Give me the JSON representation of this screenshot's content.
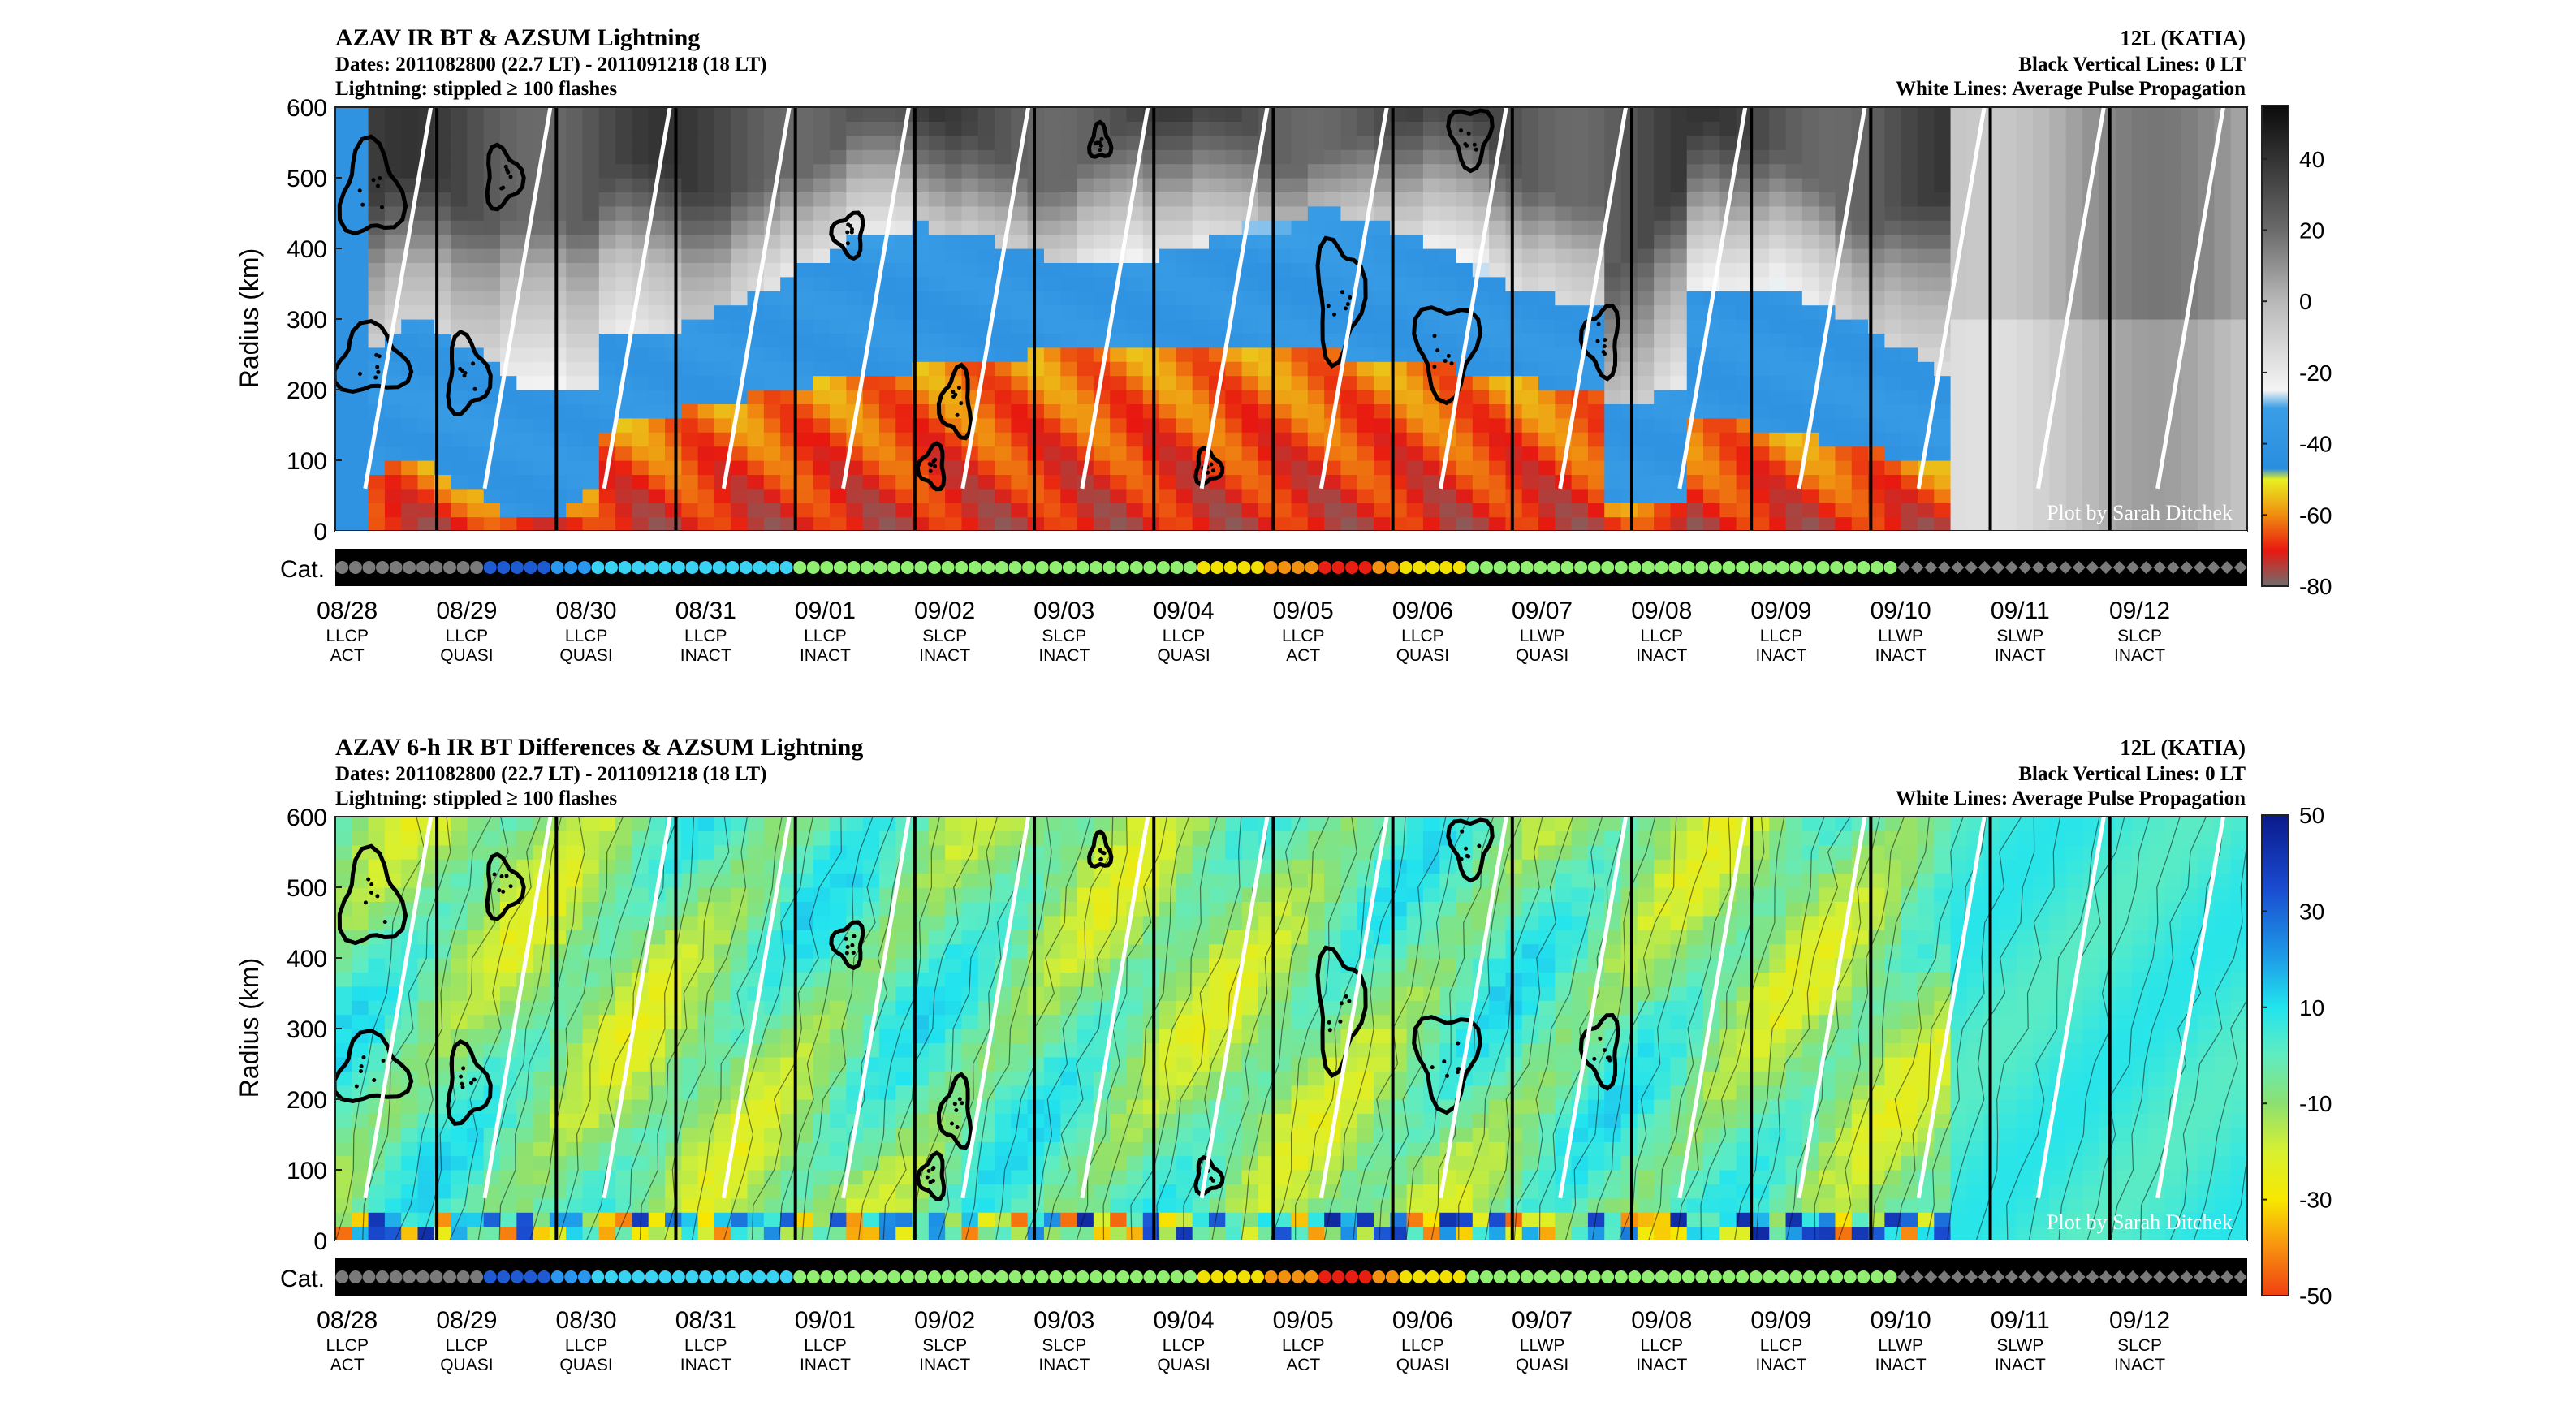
{
  "chart_data": [
    {
      "type": "heatmap",
      "id": "top",
      "title": "AZAV IR BT & AZSUM Lightning",
      "subtitle_lines": [
        "Dates: 2011082800 (22.7 LT) - 2011091218 (18 LT)",
        "Lightning: stippled ≥ 100 flashes"
      ],
      "right_lines": [
        "12L (KATIA)",
        "Black Vertical Lines: 0 LT",
        "White Lines: Average Pulse Propagation"
      ],
      "ylabel": "Radius (km)",
      "catlabel": "Cat.",
      "ylim": [
        0,
        600
      ],
      "yticks": [
        "0",
        "100",
        "200",
        "300",
        "400",
        "500",
        "600"
      ],
      "colorbar": {
        "range": [
          -80,
          55
        ],
        "ticks": [
          "40",
          "20",
          "0",
          "-20",
          "-40",
          "-60",
          "-80"
        ],
        "tick_values": [
          40,
          20,
          0,
          -20,
          -40,
          -60,
          -80
        ],
        "stops": [
          {
            "v": 55,
            "color": "#0a0a0a"
          },
          {
            "v": 20,
            "color": "#6a6a6a"
          },
          {
            "v": 0,
            "color": "#b8b8b8"
          },
          {
            "v": -25,
            "color": "#f4f4f4"
          },
          {
            "v": -30,
            "color": "#3a9ee6"
          },
          {
            "v": -47,
            "color": "#2a8ee0"
          },
          {
            "v": -50,
            "color": "#e8f020"
          },
          {
            "v": -60,
            "color": "#f08c10"
          },
          {
            "v": -70,
            "color": "#e81810"
          },
          {
            "v": -80,
            "color": "#6e6e6e"
          }
        ]
      },
      "watermark": "Plot by Sarah Ditchek"
    },
    {
      "type": "heatmap",
      "id": "bottom",
      "title": "AZAV 6-h IR BT Differences & AZSUM Lightning",
      "subtitle_lines": [
        "Dates: 2011082800 (22.7 LT) - 2011091218 (18 LT)",
        "Lightning: stippled ≥ 100 flashes"
      ],
      "right_lines": [
        "12L (KATIA)",
        "Black Vertical Lines: 0 LT",
        "White Lines: Average Pulse Propagation"
      ],
      "ylabel": "Radius (km)",
      "catlabel": "Cat.",
      "ylim": [
        0,
        600
      ],
      "yticks": [
        "0",
        "100",
        "200",
        "300",
        "400",
        "500",
        "600"
      ],
      "colorbar": {
        "range": [
          -50,
          50
        ],
        "ticks": [
          "50",
          "30",
          "10",
          "-10",
          "-30",
          "-50"
        ],
        "tick_values": [
          50,
          30,
          10,
          -10,
          -30,
          -50
        ],
        "stops": [
          {
            "v": 50,
            "color": "#0a1a8a"
          },
          {
            "v": 35,
            "color": "#1a4ad0"
          },
          {
            "v": 20,
            "color": "#1e9ee8"
          },
          {
            "v": 10,
            "color": "#22e4ee"
          },
          {
            "v": 0,
            "color": "#60ecc0"
          },
          {
            "v": -10,
            "color": "#8ce070"
          },
          {
            "v": -20,
            "color": "#d8f030"
          },
          {
            "v": -30,
            "color": "#f8e800"
          },
          {
            "v": -40,
            "color": "#f89010"
          },
          {
            "v": -50,
            "color": "#f04010"
          }
        ]
      },
      "watermark": "Plot by Sarah Ditchek"
    }
  ],
  "x_axis": {
    "dates": [
      "08/28",
      "08/29",
      "08/30",
      "08/31",
      "09/01",
      "09/02",
      "09/03",
      "09/04",
      "09/05",
      "09/06",
      "09/07",
      "09/08",
      "09/09",
      "09/10",
      "09/11",
      "09/12"
    ],
    "regime": [
      "LLCP",
      "LLCP",
      "LLCP",
      "LLCP",
      "LLCP",
      "SLCP",
      "SLCP",
      "LLCP",
      "LLCP",
      "LLCP",
      "LLWP",
      "LLCP",
      "LLCP",
      "LLWP",
      "SLWP",
      "SLCP"
    ],
    "stage": [
      "ACT",
      "QUASI",
      "QUASI",
      "INACT",
      "INACT",
      "INACT",
      "INACT",
      "QUASI",
      "ACT",
      "QUASI",
      "QUASI",
      "INACT",
      "INACT",
      "INACT",
      "INACT",
      "INACT"
    ]
  },
  "category_strip": {
    "colors": {
      "TD": "#7a7a7a",
      "C2": "#1e5ad2",
      "C3": "#2a96ee",
      "TS": "#3ad2f2",
      "H1": "#90ee70",
      "H2": "#f2e000",
      "H3": "#f29010",
      "H4": "#e81e10",
      "EX": "#7a7a7a"
    },
    "segments": [
      {
        "cat": "TD",
        "count": 11,
        "shape": "dot"
      },
      {
        "cat": "C2",
        "count": 5,
        "shape": "dot"
      },
      {
        "cat": "C3",
        "count": 3,
        "shape": "dot"
      },
      {
        "cat": "TS",
        "count": 15,
        "shape": "dot"
      },
      {
        "cat": "H1",
        "count": 30,
        "shape": "dot"
      },
      {
        "cat": "H2",
        "count": 5,
        "shape": "dot"
      },
      {
        "cat": "H3",
        "count": 4,
        "shape": "dot"
      },
      {
        "cat": "H4",
        "count": 4,
        "shape": "dot"
      },
      {
        "cat": "H3",
        "count": 2,
        "shape": "dot"
      },
      {
        "cat": "H2",
        "count": 5,
        "shape": "dot"
      },
      {
        "cat": "H1",
        "count": 32,
        "shape": "dot"
      },
      {
        "cat": "EX",
        "count": 26,
        "shape": "diamond"
      }
    ]
  }
}
